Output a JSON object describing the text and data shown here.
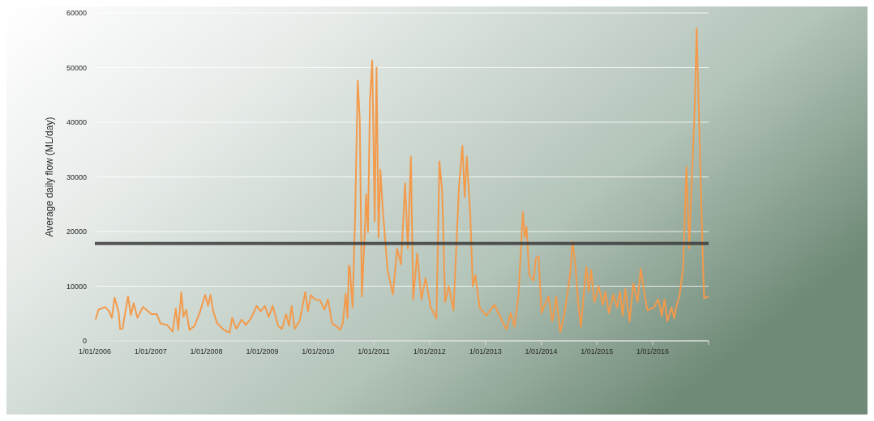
{
  "chart_data": {
    "type": "line",
    "ylabel": "Average daily flow (ML/day)",
    "ylim": [
      0,
      60000
    ],
    "yticks": [
      0,
      10000,
      20000,
      30000,
      40000,
      50000,
      60000
    ],
    "xlim": [
      "2006-01-01",
      "2017-01-01"
    ],
    "xticks": [
      {
        "value": "2006-01-01",
        "label": "1/01/2006"
      },
      {
        "value": "2007-01-01",
        "label": "1/01/2007"
      },
      {
        "value": "2008-01-01",
        "label": "1/01/2008"
      },
      {
        "value": "2009-01-01",
        "label": "1/01/2009"
      },
      {
        "value": "2010-01-01",
        "label": "1/01/2010"
      },
      {
        "value": "2011-01-01",
        "label": "1/01/2011"
      },
      {
        "value": "2012-01-01",
        "label": "1/01/2012"
      },
      {
        "value": "2013-01-01",
        "label": "1/01/2013"
      },
      {
        "value": "2014-01-01",
        "label": "1/01/2014"
      },
      {
        "value": "2015-01-01",
        "label": "1/01/2015"
      },
      {
        "value": "2016-01-01",
        "label": "1/01/2016"
      },
      {
        "value": "2017-01-01",
        "label": null
      }
    ],
    "grid": "y",
    "ref_lines": [
      {
        "axis": "y",
        "value": 17800,
        "color": "#3c3c3c"
      }
    ],
    "series": [
      {
        "color": "#f39a4b",
        "x": [
          "2006-01-07",
          "2006-01-25",
          "2006-03-10",
          "2006-04-05",
          "2006-04-22",
          "2006-05-10",
          "2006-06-06",
          "2006-06-15",
          "2006-07-01",
          "2006-08-06",
          "2006-08-25",
          "2006-09-12",
          "2006-10-07",
          "2006-11-12",
          "2007-01-06",
          "2007-02-10",
          "2007-03-06",
          "2007-04-19",
          "2007-05-25",
          "2007-06-15",
          "2007-07-01",
          "2007-07-21",
          "2007-08-04",
          "2007-08-22",
          "2007-09-12",
          "2007-10-15",
          "2007-11-19",
          "2007-12-24",
          "2008-01-12",
          "2008-01-28",
          "2008-02-15",
          "2008-03-12",
          "2008-04-25",
          "2008-06-01",
          "2008-06-18",
          "2008-07-15",
          "2008-08-18",
          "2008-09-15",
          "2008-10-21",
          "2008-11-25",
          "2008-12-21",
          "2009-01-18",
          "2009-02-12",
          "2009-03-10",
          "2009-04-15",
          "2009-05-10",
          "2009-06-06",
          "2009-06-25",
          "2009-07-12",
          "2009-08-01",
          "2009-09-03",
          "2009-10-09",
          "2009-10-27",
          "2009-11-15",
          "2009-12-10",
          "2010-01-15",
          "2010-02-12",
          "2010-03-07",
          "2010-04-03",
          "2010-05-09",
          "2010-05-25",
          "2010-06-12",
          "2010-07-01",
          "2010-07-13",
          "2010-07-22",
          "2010-07-28",
          "2010-08-15",
          "2010-09-01",
          "2010-09-18",
          "2010-10-01",
          "2010-10-15",
          "2010-11-03",
          "2010-11-12",
          "2010-11-24",
          "2010-12-07",
          "2010-12-22",
          "2011-01-07",
          "2011-01-19",
          "2011-02-01",
          "2011-02-13",
          "2011-02-27",
          "2011-04-01",
          "2011-05-06",
          "2011-06-03",
          "2011-06-28",
          "2011-07-25",
          "2011-08-12",
          "2011-09-01",
          "2011-09-16",
          "2011-10-12",
          "2011-11-09",
          "2011-12-06",
          "2012-01-09",
          "2012-02-15",
          "2012-03-06",
          "2012-03-24",
          "2012-04-12",
          "2012-05-06",
          "2012-06-06",
          "2012-07-12",
          "2012-08-03",
          "2012-08-18",
          "2012-09-01",
          "2012-09-24",
          "2012-10-10",
          "2012-10-27",
          "2012-11-24",
          "2013-01-06",
          "2013-03-01",
          "2013-04-21",
          "2013-05-18",
          "2013-06-15",
          "2013-07-10",
          "2013-08-06",
          "2013-09-03",
          "2013-09-15",
          "2013-09-27",
          "2013-10-15",
          "2013-11-12",
          "2013-11-27",
          "2013-12-15",
          "2014-01-03",
          "2014-02-01",
          "2014-02-18",
          "2014-03-15",
          "2014-04-09",
          "2014-05-06",
          "2014-06-03",
          "2014-07-09",
          "2014-07-25",
          "2014-08-12",
          "2014-09-01",
          "2014-09-18",
          "2014-10-06",
          "2014-10-24",
          "2014-11-09",
          "2014-11-24",
          "2014-12-15",
          "2015-01-12",
          "2015-02-09",
          "2015-02-24",
          "2015-03-21",
          "2015-04-18",
          "2015-05-12",
          "2015-06-01",
          "2015-06-18",
          "2015-07-06",
          "2015-08-03",
          "2015-08-27",
          "2015-09-24",
          "2015-10-15",
          "2015-11-09",
          "2015-11-27",
          "2016-01-09",
          "2016-02-06",
          "2016-03-01",
          "2016-03-18",
          "2016-04-06",
          "2016-05-03",
          "2016-05-21",
          "2016-06-06",
          "2016-06-24",
          "2016-07-12",
          "2016-07-18",
          "2016-08-09",
          "2016-08-27",
          "2016-09-09",
          "2016-10-01",
          "2016-10-15",
          "2016-11-03",
          "2016-11-27",
          "2016-12-03",
          "2016-12-27"
        ],
        "values": [
          4000,
          5700,
          6200,
          5400,
          4200,
          7900,
          5200,
          2200,
          2200,
          8100,
          4700,
          6900,
          4200,
          6200,
          4900,
          4900,
          3200,
          2900,
          1700,
          5900,
          2000,
          8900,
          4400,
          5700,
          2000,
          2700,
          5200,
          8400,
          6400,
          8400,
          5400,
          3200,
          2000,
          1500,
          4200,
          2200,
          3900,
          2900,
          4200,
          6400,
          5400,
          6400,
          4400,
          6400,
          2700,
          2200,
          4900,
          2700,
          6400,
          2200,
          3700,
          8900,
          5400,
          8400,
          7600,
          7400,
          5700,
          7600,
          3200,
          2500,
          2000,
          3200,
          8600,
          4200,
          13800,
          13500,
          6100,
          22900,
          47600,
          40700,
          8100,
          19900,
          26800,
          19900,
          44100,
          51300,
          21900,
          50000,
          18900,
          31300,
          24800,
          13000,
          8500,
          16900,
          14000,
          28800,
          16900,
          33700,
          7600,
          16000,
          7600,
          11500,
          6100,
          4100,
          32800,
          27300,
          7100,
          10000,
          5600,
          28300,
          35700,
          26300,
          33700,
          22900,
          10000,
          12000,
          6100,
          4600,
          6600,
          3600,
          2100,
          5100,
          2600,
          8500,
          23600,
          18900,
          20900,
          12000,
          11000,
          15000,
          15500,
          5100,
          7100,
          8100,
          3600,
          8100,
          1600,
          5100,
          12000,
          18200,
          14000,
          6600,
          2600,
          8500,
          13500,
          9000,
          13000,
          7100,
          10000,
          6600,
          9000,
          5100,
          8500,
          6100,
          9000,
          4600,
          9500,
          3600,
          10500,
          7100,
          13200,
          8500,
          5600,
          6100,
          7600,
          4600,
          7600,
          3600,
          6100,
          4100,
          6600,
          8100,
          12000,
          13500,
          31800,
          16900,
          26800,
          41600,
          57200,
          36700,
          12000,
          7800,
          8100
        ]
      }
    ]
  }
}
